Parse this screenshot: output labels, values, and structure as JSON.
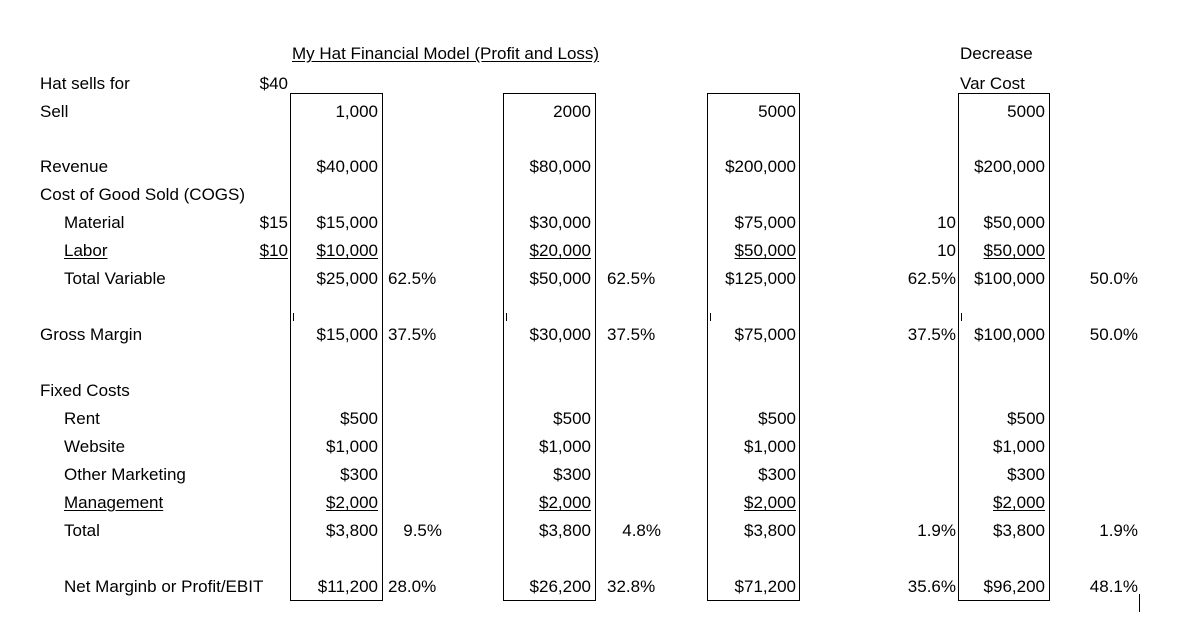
{
  "header": {
    "title": "My Hat Financial Model  (Profit and Loss)",
    "decrease_line1": "Decrease",
    "decrease_line2": "Var Cost"
  },
  "labels": {
    "hat_sells_for": "Hat sells for",
    "hat_price": "$40",
    "sell": "Sell",
    "revenue": "Revenue",
    "cogs": "Cost of Good Sold (COGS)",
    "material": "Material",
    "material_unit": "$15",
    "labor": "Labor",
    "labor_unit": "$10",
    "total_variable": "Total Variable",
    "gross_margin": "Gross Margin",
    "fixed_costs": "Fixed Costs",
    "rent": "Rent",
    "website": "Website",
    "other_marketing": "Other Marketing",
    "management": "Management",
    "total": "Total",
    "net_margin": "Net Marginb or Profit/EBIT"
  },
  "scenarios": [
    {
      "sell": "1,000",
      "revenue": "$40,000",
      "material": "$15,000",
      "labor": "$10,000",
      "total_variable": "$25,000",
      "tv_pct": "62.5%",
      "gross_margin": "$15,000",
      "gm_pct": "37.5%",
      "rent": "$500",
      "website": "$1,000",
      "other_marketing": "$300",
      "management": "$2,000",
      "total": "$3,800",
      "total_pct": "9.5%",
      "net": "$11,200",
      "net_pct": "28.0%"
    },
    {
      "sell": "2000",
      "revenue": "$80,000",
      "material": "$30,000",
      "labor": "$20,000",
      "total_variable": "$50,000",
      "tv_pct": "62.5%",
      "gross_margin": "$30,000",
      "gm_pct": "37.5%",
      "rent": "$500",
      "website": "$1,000",
      "other_marketing": "$300",
      "management": "$2,000",
      "total": "$3,800",
      "total_pct": "4.8%",
      "net": "$26,200",
      "net_pct": "32.8%"
    },
    {
      "sell": "5000",
      "revenue": "$200,000",
      "material": "$75,000",
      "labor": "$50,000",
      "total_variable": "$125,000",
      "tv_pct": "62.5%",
      "gross_margin": "$75,000",
      "gm_pct": "37.5%",
      "rent": "$500",
      "website": "$1,000",
      "other_marketing": "$300",
      "management": "$2,000",
      "total": "$3,800",
      "total_pct": "1.9%",
      "net": "$71,200",
      "net_pct": "35.6%"
    },
    {
      "sell": "5000",
      "revenue": "$200,000",
      "material": "$50,000",
      "material_unit": "10",
      "labor": "$50,000",
      "labor_unit": "10",
      "total_variable": "$100,000",
      "tv_pct": "50.0%",
      "gross_margin": "$100,000",
      "gm_pct": "50.0%",
      "rent": "$500",
      "website": "$1,000",
      "other_marketing": "$300",
      "management": "$2,000",
      "total": "$3,800",
      "total_pct": "1.9%",
      "net": "$96,200",
      "net_pct": "48.1%"
    }
  ]
}
